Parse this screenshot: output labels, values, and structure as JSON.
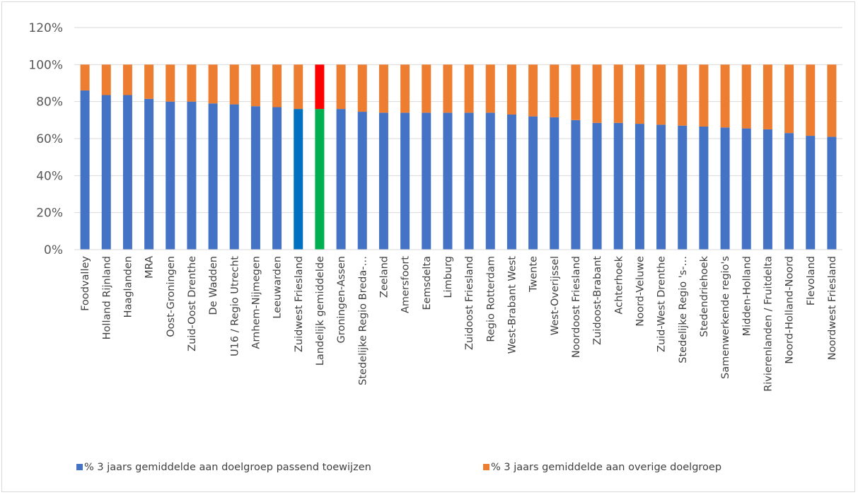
{
  "chart_data": {
    "type": "bar",
    "stacked": true,
    "percent": true,
    "title": "",
    "xlabel": "",
    "ylabel": "",
    "ylim": [
      0,
      120
    ],
    "yticks": [
      "0%",
      "20%",
      "40%",
      "60%",
      "80%",
      "100%",
      "120%"
    ],
    "grid": true,
    "legend_position": "bottom",
    "categories": [
      "Foodvalley",
      "Holland Rijnland",
      "Haaglanden",
      "MRA",
      "Oost-Groningen",
      "Zuid-Oost Drenthe",
      "De Wadden",
      "U16 / Regio Utrecht",
      "Arnhem-Nijmegen",
      "Leeuwarden",
      "Zuidwest Friesland",
      "Landelijk gemiddelde",
      "Groningen-Assen",
      "Stedelijke Regio Breda-…",
      "Zeeland",
      "Amersfoort",
      "Eemsdelta",
      "Limburg",
      "Zuidoost Friesland",
      "Regio Rotterdam",
      "West-Brabant West",
      "Twente",
      "West-Overijssel",
      "Noordoost Friesland",
      "Zuidoost-Brabant",
      "Achterhoek",
      "Noord-Veluwe",
      "Zuid-West Drenthe",
      "Stedelijke Regio 's-…",
      "Stedendriehoek",
      "Samenwerkende regio's",
      "Midden-Holland",
      "Rivierenlanden / Fruitdelta",
      "Noord-Holland-Noord",
      "Flevoland",
      "Noordwest Friesland"
    ],
    "series": [
      {
        "name": "% 3 jaars gemiddelde aan doelgroep passend toewijzen",
        "color": "#4472c4",
        "values": [
          86,
          83.5,
          83.5,
          81.5,
          80,
          80,
          79,
          78.5,
          77.5,
          77,
          76,
          76,
          76,
          74.5,
          74,
          74,
          74,
          74,
          74,
          74,
          73,
          72,
          71.5,
          70,
          68.5,
          68.5,
          68,
          67.5,
          67,
          66.5,
          66,
          65.5,
          65,
          63,
          61.5,
          61
        ]
      },
      {
        "name": "% 3 jaars gemiddelde aan overige doelgroep",
        "color": "#ed7d31",
        "values": [
          14,
          16.5,
          16.5,
          18.5,
          20,
          20,
          21,
          21.5,
          22.5,
          23,
          24,
          24,
          24,
          25.5,
          26,
          26,
          26,
          26,
          26,
          26,
          27,
          28,
          28.5,
          30,
          31.5,
          31.5,
          32,
          32.5,
          33,
          33.5,
          34,
          34.5,
          35,
          37,
          38.5,
          39
        ]
      }
    ],
    "highlights": [
      {
        "category": "Zuidwest Friesland",
        "colors": [
          "#0070c0",
          "#ed7d31"
        ]
      },
      {
        "category": "Landelijk gemiddelde",
        "colors": [
          "#00b050",
          "#ff0000"
        ]
      }
    ]
  }
}
